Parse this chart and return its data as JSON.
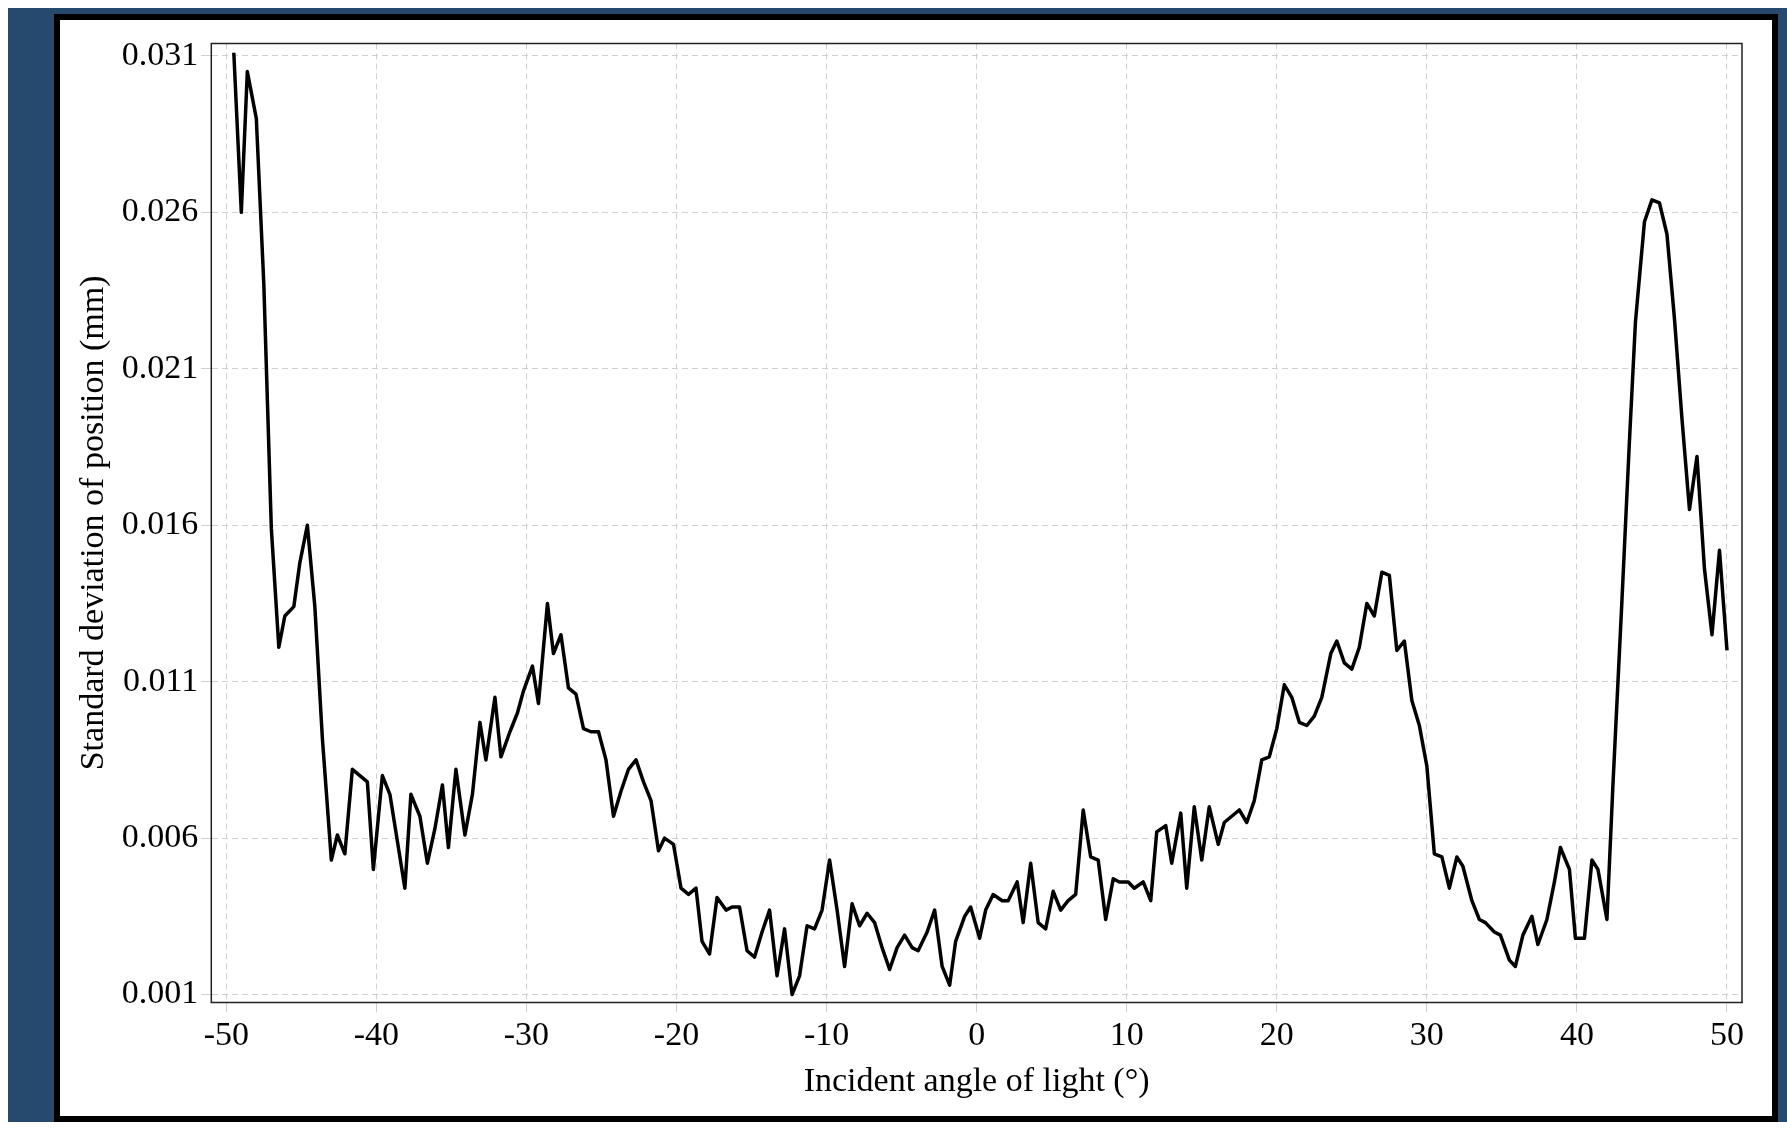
{
  "chart_data": {
    "type": "line",
    "xlabel": "Incident angle of light (°)",
    "ylabel": "Standard deviation of position (mm)",
    "xlim": [
      -51,
      51
    ],
    "xticks": [
      -50,
      -40,
      -30,
      -20,
      -10,
      0,
      10,
      20,
      30,
      40,
      50
    ],
    "ylim": [
      0.00075,
      0.0314
    ],
    "yticks": [
      0.001,
      0.006,
      0.011,
      0.016,
      0.021,
      0.026,
      0.031
    ],
    "grid": true,
    "legend": false,
    "marker": "none",
    "line_style": "solid",
    "series": [
      {
        "color": "#000000",
        "x": [
          -49.5,
          -49.0,
          -48.6,
          -48.0,
          -47.5,
          -47.0,
          -46.5,
          -46.1,
          -45.5,
          -45.1,
          -44.6,
          -44.1,
          -43.6,
          -43.0,
          -42.6,
          -42.1,
          -41.6,
          -41.1,
          -40.6,
          -40.2,
          -39.6,
          -39.1,
          -38.6,
          -38.1,
          -37.7,
          -37.1,
          -36.6,
          -36.1,
          -35.6,
          -35.2,
          -34.7,
          -34.1,
          -33.6,
          -33.1,
          -32.7,
          -32.1,
          -31.7,
          -31.1,
          -30.6,
          -30.2,
          -29.6,
          -29.2,
          -28.6,
          -28.2,
          -27.7,
          -27.2,
          -26.7,
          -26.2,
          -25.7,
          -25.2,
          -24.7,
          -24.2,
          -23.7,
          -23.2,
          -22.7,
          -22.2,
          -21.7,
          -21.2,
          -20.8,
          -20.2,
          -19.7,
          -19.2,
          -18.7,
          -18.3,
          -17.8,
          -17.3,
          -16.7,
          -16.3,
          -15.8,
          -15.3,
          -14.8,
          -14.3,
          -13.8,
          -13.3,
          -12.8,
          -12.3,
          -11.8,
          -11.3,
          -10.8,
          -10.3,
          -9.8,
          -9.3,
          -8.8,
          -8.3,
          -7.8,
          -7.3,
          -6.8,
          -6.3,
          -5.8,
          -5.3,
          -4.8,
          -4.3,
          -3.9,
          -3.3,
          -2.8,
          -2.3,
          -1.8,
          -1.4,
          -0.8,
          -0.4,
          0.2,
          0.6,
          1.1,
          1.7,
          2.1,
          2.7,
          3.1,
          3.6,
          4.1,
          4.6,
          5.1,
          5.6,
          6.1,
          6.6,
          7.1,
          7.6,
          8.1,
          8.6,
          9.1,
          9.5,
          10.1,
          10.5,
          11.1,
          11.6,
          12.0,
          12.6,
          13.0,
          13.6,
          14.0,
          14.5,
          15.0,
          15.5,
          16.1,
          16.5,
          17.0,
          17.5,
          18.0,
          18.5,
          19.0,
          19.5,
          20.0,
          20.5,
          21.0,
          21.5,
          22.0,
          22.5,
          23.0,
          23.6,
          24.0,
          24.5,
          25.0,
          25.5,
          26.0,
          26.5,
          27.0,
          27.5,
          28.0,
          28.5,
          29.0,
          29.5,
          30.0,
          30.5,
          31.0,
          31.5,
          32.0,
          32.4,
          33.0,
          33.5,
          33.9,
          34.5,
          34.9,
          35.5,
          35.9,
          36.4,
          37.0,
          37.4,
          38.0,
          38.5,
          38.9,
          39.5,
          39.9,
          40.5,
          41.0,
          41.4,
          42.0,
          42.4,
          43.0,
          43.5,
          43.9,
          44.5,
          45.0,
          45.5,
          46.0,
          46.5,
          47.0,
          47.5,
          48.0,
          48.5,
          49.0,
          49.5,
          50.0
        ],
        "values": [
          0.0311,
          0.026,
          0.0305,
          0.029,
          0.0237,
          0.0159,
          0.0121,
          0.0131,
          0.0134,
          0.0148,
          0.016,
          0.0134,
          0.0092,
          0.0053,
          0.0061,
          0.0055,
          0.0082,
          0.008,
          0.0078,
          0.005,
          0.008,
          0.0074,
          0.0059,
          0.0044,
          0.0074,
          0.0067,
          0.0052,
          0.0063,
          0.0077,
          0.0057,
          0.0082,
          0.0061,
          0.0074,
          0.0097,
          0.0085,
          0.0105,
          0.0086,
          0.0094,
          0.01,
          0.0107,
          0.0115,
          0.0103,
          0.0135,
          0.0119,
          0.0125,
          0.0108,
          0.0106,
          0.0095,
          0.0094,
          0.0094,
          0.0085,
          0.0067,
          0.0075,
          0.0082,
          0.0085,
          0.0078,
          0.0072,
          0.0056,
          0.006,
          0.0058,
          0.0044,
          0.0042,
          0.0044,
          0.0027,
          0.0023,
          0.0041,
          0.0037,
          0.0038,
          0.0038,
          0.0024,
          0.0022,
          0.003,
          0.0037,
          0.0016,
          0.0031,
          0.001,
          0.0016,
          0.0032,
          0.0031,
          0.0037,
          0.0053,
          0.0037,
          0.0019,
          0.0039,
          0.0032,
          0.0036,
          0.0033,
          0.0025,
          0.0018,
          0.0025,
          0.0029,
          0.0025,
          0.0024,
          0.003,
          0.0037,
          0.0019,
          0.0013,
          0.0027,
          0.0035,
          0.0038,
          0.0028,
          0.0037,
          0.0042,
          0.004,
          0.004,
          0.0046,
          0.0033,
          0.0052,
          0.0033,
          0.0031,
          0.0043,
          0.0037,
          0.004,
          0.0042,
          0.0069,
          0.0054,
          0.0053,
          0.0034,
          0.0047,
          0.0046,
          0.0046,
          0.0044,
          0.0046,
          0.004,
          0.0062,
          0.0064,
          0.0052,
          0.0068,
          0.0044,
          0.007,
          0.0053,
          0.007,
          0.0058,
          0.0065,
          0.0067,
          0.0069,
          0.0065,
          0.0072,
          0.0085,
          0.0086,
          0.0095,
          0.0109,
          0.0105,
          0.0097,
          0.0096,
          0.0099,
          0.0105,
          0.0119,
          0.0123,
          0.0116,
          0.0114,
          0.0121,
          0.0135,
          0.0131,
          0.0145,
          0.0144,
          0.012,
          0.0123,
          0.0104,
          0.0096,
          0.0083,
          0.0055,
          0.0054,
          0.0044,
          0.0054,
          0.0051,
          0.004,
          0.0034,
          0.0033,
          0.003,
          0.0029,
          0.0021,
          0.0019,
          0.0029,
          0.0035,
          0.0026,
          0.0034,
          0.0046,
          0.0057,
          0.005,
          0.0028,
          0.0028,
          0.0053,
          0.005,
          0.0034,
          0.0077,
          0.0136,
          0.0187,
          0.0225,
          0.0257,
          0.0264,
          0.0263,
          0.0253,
          0.0226,
          0.0194,
          0.0165,
          0.0182,
          0.0146,
          0.0125,
          0.0152,
          0.012
        ]
      }
    ]
  }
}
